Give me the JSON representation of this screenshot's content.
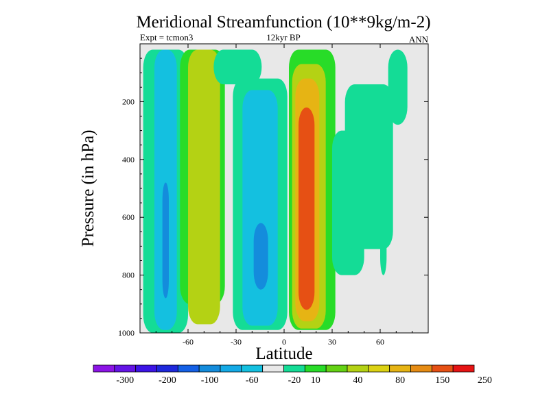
{
  "chart_data": {
    "type": "heatmap",
    "title": "Meridional Streamfunction (10**9kg/m-2)",
    "subtitle_left": "Expt = tcmon3",
    "subtitle_center": "12kyr BP",
    "subtitle_right": "ANN",
    "xlabel": "Latitude",
    "ylabel": "Pressure (in hPa)",
    "xlim": [
      -90,
      90
    ],
    "ylim": [
      0,
      1000
    ],
    "y_inverted": true,
    "x_ticks": [
      -60,
      -30,
      0,
      30,
      60
    ],
    "x_tick_labels": [
      "-60",
      "-30",
      "0",
      "30",
      "60"
    ],
    "y_ticks": [
      200,
      400,
      600,
      800,
      1000
    ],
    "y_tick_labels": [
      "200",
      "400",
      "600",
      "800",
      "1000"
    ],
    "colorbar": {
      "colors": [
        "#8c14e6",
        "#6414e6",
        "#3c14e6",
        "#1e28dc",
        "#1460e6",
        "#148cdc",
        "#14aae6",
        "#14c0e0",
        "#e8e8e8",
        "#14dc96",
        "#28dc28",
        "#64d214",
        "#b4d214",
        "#dcd214",
        "#e6b414",
        "#e68c14",
        "#e65014",
        "#e61414"
      ],
      "tick_labels": [
        "-300",
        "-200",
        "-100",
        "-60",
        "-20",
        "10",
        "40",
        "80",
        "150",
        "250"
      ]
    },
    "field": {
      "background_level": "10",
      "regions": [
        {
          "level": "-20",
          "lat_range": [
            -88,
            -60
          ],
          "p_range": [
            20,
            1000
          ]
        },
        {
          "level": "-60",
          "lat_range": [
            -81,
            -67
          ],
          "p_range": [
            20,
            990
          ]
        },
        {
          "level": "-100",
          "lat_range": [
            -76,
            -72
          ],
          "p_range": [
            480,
            880
          ]
        },
        {
          "level": "10",
          "lat_range": [
            -65,
            -37
          ],
          "p_range": [
            20,
            900
          ]
        },
        {
          "level": "40",
          "lat_range": [
            -60,
            -40
          ],
          "p_range": [
            20,
            970
          ]
        },
        {
          "level": "-20",
          "lat_range": [
            -44,
            -14
          ],
          "p_range": [
            20,
            140
          ]
        },
        {
          "level": "-20",
          "lat_range": [
            -32,
            2
          ],
          "p_range": [
            120,
            990
          ]
        },
        {
          "level": "-60",
          "lat_range": [
            -26,
            -4
          ],
          "p_range": [
            160,
            975
          ]
        },
        {
          "level": "-100",
          "lat_range": [
            -19,
            -10
          ],
          "p_range": [
            620,
            850
          ]
        },
        {
          "level": "10",
          "lat_range": [
            3,
            32
          ],
          "p_range": [
            20,
            990
          ]
        },
        {
          "level": "40",
          "lat_range": [
            5,
            26
          ],
          "p_range": [
            70,
            985
          ]
        },
        {
          "level": "80",
          "lat_range": [
            7,
            22
          ],
          "p_range": [
            120,
            960
          ]
        },
        {
          "level": "150",
          "lat_range": [
            9,
            19
          ],
          "p_range": [
            220,
            920
          ]
        },
        {
          "level": "-20",
          "lat_range": [
            30,
            50
          ],
          "p_range": [
            300,
            800
          ]
        },
        {
          "level": "-20",
          "lat_range": [
            38,
            68
          ],
          "p_range": [
            140,
            710
          ]
        },
        {
          "level": "-20",
          "lat_range": [
            65,
            77
          ],
          "p_range": [
            20,
            280
          ]
        },
        {
          "level": "-20",
          "lat_range": [
            60,
            64
          ],
          "p_range": [
            630,
            800
          ]
        }
      ]
    }
  }
}
